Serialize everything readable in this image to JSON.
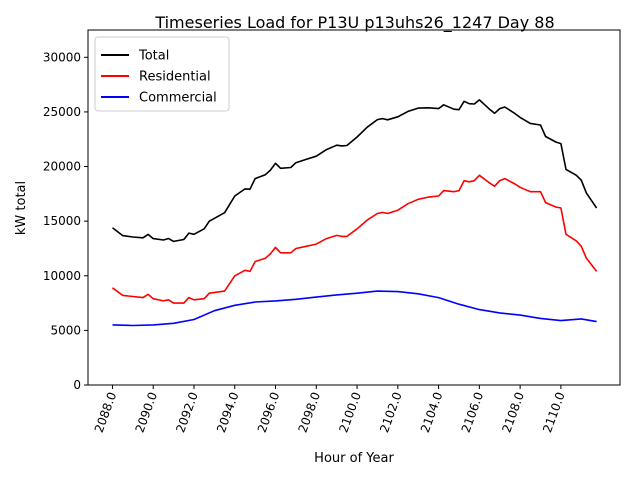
{
  "chart_data": {
    "type": "line",
    "title": "Timeseries Load for P13U p13uhs26_1247  Day 88",
    "xlabel": "Hour of Year",
    "ylabel": "kW total",
    "xlim": [
      2086.8,
      2112.9
    ],
    "ylim": [
      0,
      32500
    ],
    "xticks": [
      2088,
      2090,
      2092,
      2094,
      2096,
      2098,
      2100,
      2102,
      2104,
      2106,
      2108,
      2110
    ],
    "xtick_labels": [
      "2088.0",
      "2090.0",
      "2092.0",
      "2094.0",
      "2096.0",
      "2098.0",
      "2100.0",
      "2102.0",
      "2104.0",
      "2106.0",
      "2108.0",
      "2110.0"
    ],
    "yticks": [
      0,
      5000,
      10000,
      15000,
      20000,
      25000,
      30000
    ],
    "ytick_labels": [
      "0",
      "5000",
      "10000",
      "15000",
      "20000",
      "25000",
      "30000"
    ],
    "grid": false,
    "legend_position": "top-left",
    "x": [
      2088.0,
      2088.5,
      2089.0,
      2089.5,
      2089.75,
      2090.0,
      2090.5,
      2090.75,
      2091.0,
      2091.5,
      2091.75,
      2092.0,
      2092.5,
      2092.75,
      2093.5,
      2094.0,
      2094.5,
      2094.75,
      2095.0,
      2095.5,
      2095.75,
      2096.0,
      2096.25,
      2096.75,
      2097.0,
      2097.5,
      2098.0,
      2098.5,
      2099.0,
      2099.25,
      2099.5,
      2100.0,
      2100.5,
      2101.0,
      2101.25,
      2101.5,
      2102.0,
      2102.5,
      2103.0,
      2103.5,
      2104.0,
      2104.25,
      2104.75,
      2105.0,
      2105.25,
      2105.5,
      2105.75,
      2106.0,
      2106.5,
      2106.75,
      2107.0,
      2107.25,
      2107.75,
      2108.0,
      2108.5,
      2109.0,
      2109.25,
      2109.75,
      2110.0,
      2110.25,
      2110.75,
      2111.0,
      2111.25,
      2111.5,
      2111.75
    ],
    "series": [
      {
        "name": "Total",
        "color": "#000000",
        "values": [
          14400,
          13675,
          13550,
          13475,
          13790,
          13400,
          13275,
          13410,
          13150,
          13325,
          13910,
          13800,
          14300,
          15000,
          15775,
          17300,
          17950,
          17925,
          18900,
          19250,
          19675,
          20300,
          19840,
          19910,
          20350,
          20650,
          20950,
          21550,
          21950,
          21890,
          21925,
          22700,
          23600,
          24300,
          24390,
          24275,
          24550,
          25050,
          25350,
          25375,
          25300,
          25650,
          25250,
          25200,
          25975,
          25750,
          25725,
          26100,
          25250,
          24875,
          25300,
          25450,
          24850,
          24500,
          23950,
          23800,
          22750,
          22250,
          22100,
          19740,
          19210,
          18750,
          17570,
          16880,
          16200
        ]
      },
      {
        "name": "Residential",
        "color": "#ff0000",
        "values": [
          8900,
          8200,
          8100,
          8000,
          8300,
          7900,
          7700,
          7800,
          7500,
          7500,
          8000,
          7800,
          7900,
          8400,
          8600,
          10000,
          10500,
          10400,
          11300,
          11600,
          12000,
          12600,
          12100,
          12100,
          12500,
          12700,
          12900,
          13400,
          13700,
          13600,
          13600,
          14300,
          15100,
          15700,
          15800,
          15700,
          16000,
          16600,
          17000,
          17200,
          17300,
          17800,
          17700,
          17800,
          18700,
          18600,
          18700,
          19200,
          18500,
          18200,
          18700,
          18900,
          18400,
          18100,
          17700,
          17700,
          16700,
          16300,
          16200,
          13800,
          13200,
          12700,
          11600,
          11000,
          10400
        ]
      },
      {
        "name": "Commercial",
        "color": "#0000ff",
        "x": [
          2088,
          2089,
          2090,
          2091,
          2092,
          2093,
          2094,
          2095,
          2096,
          2097,
          2098,
          2099,
          2100,
          2101,
          2102,
          2103,
          2104,
          2105,
          2106,
          2107,
          2108,
          2109,
          2110,
          2111,
          2111.75
        ],
        "values": [
          5500,
          5450,
          5500,
          5650,
          6000,
          6800,
          7300,
          7600,
          7700,
          7850,
          8050,
          8250,
          8400,
          8600,
          8550,
          8350,
          8000,
          7400,
          6900,
          6600,
          6400,
          6100,
          5900,
          6050,
          5800
        ]
      }
    ]
  }
}
